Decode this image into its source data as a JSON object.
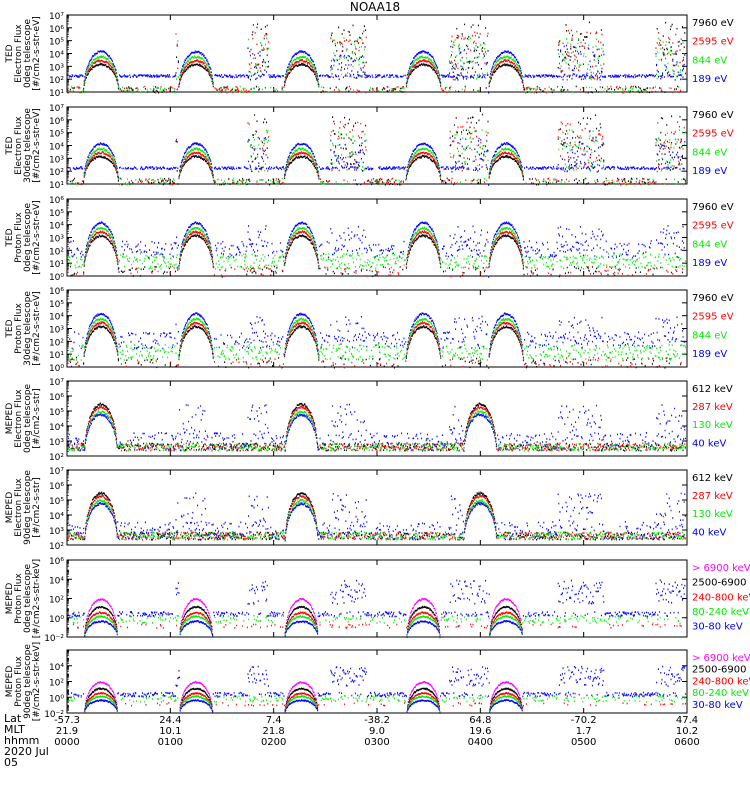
{
  "title": "NOAA18",
  "footer": {
    "row_labels": [
      "Lat",
      "MLT",
      "hhmm",
      "2020 Jul 05"
    ],
    "ticks": [
      {
        "lat": "-57.3",
        "mlt": "21.9",
        "time": "0000"
      },
      {
        "lat": "24.4",
        "mlt": "10.1",
        "time": "0100"
      },
      {
        "lat": "7.4",
        "mlt": "21.8",
        "time": "0200"
      },
      {
        "lat": "-38.2",
        "mlt": "9.0",
        "time": "0300"
      },
      {
        "lat": "64.8",
        "mlt": "19.6",
        "time": "0400"
      },
      {
        "lat": "-70.2",
        "mlt": "1.7",
        "time": "0500"
      },
      {
        "lat": "47.4",
        "mlt": "10.2",
        "time": "0600"
      }
    ]
  },
  "colors": {
    "black": "#000000",
    "red": "#ff0000",
    "green": "#00ee00",
    "blue": "#0000ff",
    "magenta": "#ff00ff"
  },
  "chart_data": [
    {
      "type": "line",
      "ylabel": [
        "TED",
        "Electron Flux",
        "0deg telescope",
        "[#/cm2-s-str-eV]"
      ],
      "ylog": [
        1,
        7
      ],
      "tick_labels": [
        "10¹",
        "10²",
        "10³",
        "10⁴",
        "10⁵",
        "10⁶",
        "10⁷"
      ],
      "legend": [
        {
          "label": "7960 eV",
          "color": "black"
        },
        {
          "label": "2595 eV",
          "color": "red"
        },
        {
          "label": "844 eV",
          "color": "green"
        },
        {
          "label": "189 eV",
          "color": "blue"
        }
      ],
      "kind": "ted_e"
    },
    {
      "type": "line",
      "ylabel": [
        "TED",
        "Electron Flux",
        "30deg telescope",
        "[#/cm2-s-str-eV]"
      ],
      "ylog": [
        1,
        7
      ],
      "tick_labels": [
        "10¹",
        "10²",
        "10³",
        "10⁴",
        "10⁵",
        "10⁶",
        "10⁷"
      ],
      "legend": [
        {
          "label": "7960 eV",
          "color": "black"
        },
        {
          "label": "2595 eV",
          "color": "red"
        },
        {
          "label": "844 eV",
          "color": "green"
        },
        {
          "label": "189 eV",
          "color": "blue"
        }
      ],
      "kind": "ted_e"
    },
    {
      "type": "line",
      "ylabel": [
        "TED",
        "Proton Flux",
        "0deg telescope",
        "[#/cm2-s-str-eV]"
      ],
      "ylog": [
        0,
        6
      ],
      "tick_labels": [
        "10⁰",
        "10¹",
        "10²",
        "10³",
        "10⁴",
        "10⁵",
        "10⁶"
      ],
      "legend": [
        {
          "label": "7960 eV",
          "color": "black"
        },
        {
          "label": "2595 eV",
          "color": "red"
        },
        {
          "label": "844 eV",
          "color": "green"
        },
        {
          "label": "189 eV",
          "color": "blue"
        }
      ],
      "kind": "ted_p"
    },
    {
      "type": "line",
      "ylabel": [
        "TED",
        "Proton Flux",
        "30deg telescope",
        "[#/cm2-s-str-eV]"
      ],
      "ylog": [
        0,
        6
      ],
      "tick_labels": [
        "10⁰",
        "10¹",
        "10²",
        "10³",
        "10⁴",
        "10⁵",
        "10⁶"
      ],
      "legend": [
        {
          "label": "7960 eV",
          "color": "black"
        },
        {
          "label": "2595 eV",
          "color": "red"
        },
        {
          "label": "844 eV",
          "color": "green"
        },
        {
          "label": "189 eV",
          "color": "blue"
        }
      ],
      "kind": "ted_p30"
    },
    {
      "type": "line",
      "ylabel": [
        "MEPED",
        "Electron Flux",
        "0deg telescope",
        "[#/cm2-s-str]"
      ],
      "ylog": [
        2,
        7
      ],
      "tick_labels": [
        "10²",
        "10³",
        "10⁴",
        "10⁵",
        "10⁶",
        "10⁷"
      ],
      "legend": [
        {
          "label": "612 keV",
          "color": "black"
        },
        {
          "label": "287 keV",
          "color": "red"
        },
        {
          "label": "130 keV",
          "color": "green"
        },
        {
          "label": "40 keV",
          "color": "blue"
        }
      ],
      "kind": "mep_e0"
    },
    {
      "type": "line",
      "ylabel": [
        "MEPED",
        "Electron Flux",
        "90deg telescope",
        "[#/cm2-s-str]"
      ],
      "ylog": [
        2,
        7
      ],
      "tick_labels": [
        "10²",
        "10³",
        "10⁴",
        "10⁵",
        "10⁶",
        "10⁷"
      ],
      "legend": [
        {
          "label": "612 keV",
          "color": "black"
        },
        {
          "label": "287 keV",
          "color": "red"
        },
        {
          "label": "130 keV",
          "color": "green"
        },
        {
          "label": "40 keV",
          "color": "blue"
        }
      ],
      "kind": "mep_e90"
    },
    {
      "type": "line",
      "ylabel": [
        "MEPED",
        "Proton Flux",
        "0deg telescope",
        "[#/cm2-s-str-keV]"
      ],
      "ylog": [
        -2,
        6
      ],
      "tick_labels": [
        "10⁻²",
        "10⁰",
        "10²",
        "10⁴",
        "10⁶"
      ],
      "tick_exps": [
        -2,
        0,
        2,
        4,
        6
      ],
      "legend": [
        {
          "label": "> 6900 keV",
          "color": "magenta"
        },
        {
          "label": "2500-6900",
          "color": "black"
        },
        {
          "label": "240-800 keV",
          "color": "red"
        },
        {
          "label": "80-240 keV",
          "color": "green"
        },
        {
          "label": "30-80 keV",
          "color": "blue"
        }
      ],
      "kind": "mep_p0"
    },
    {
      "type": "line",
      "ylabel": [
        "MEPED",
        "Proton Flux",
        "90deg telescope",
        "[#/cm2-s-str-keV]"
      ],
      "ylog": [
        -2,
        6
      ],
      "tick_labels": [
        "10⁻²",
        "10⁰",
        "10²",
        "10⁴"
      ],
      "tick_exps": [
        -2,
        0,
        2,
        4
      ],
      "legend": [
        {
          "label": "> 6900 keV",
          "color": "magenta"
        },
        {
          "label": "2500-6900",
          "color": "black"
        },
        {
          "label": "240-800 keV",
          "color": "red"
        },
        {
          "label": "80-240 keV",
          "color": "green"
        },
        {
          "label": "30-80 keV",
          "color": "blue"
        }
      ],
      "kind": "mep_p90"
    }
  ]
}
